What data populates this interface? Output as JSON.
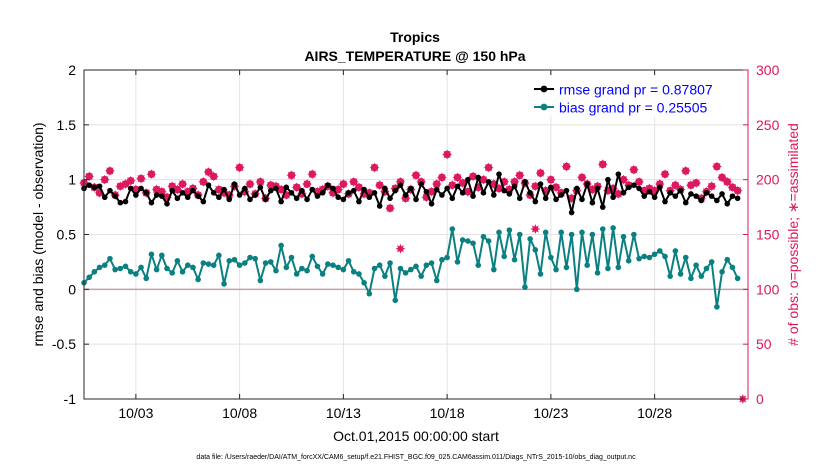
{
  "chart_data": {
    "type": "line",
    "title": "Tropics",
    "subtitle": "AIRS_TEMPERATURE @ 150 hPa",
    "xlabel": "Oct.01,2015 00:00:00 start",
    "ylabel_left": "rmse and bias (model - observation)",
    "ylabel_right": "# of obs: o=possible; ∗=assimilated",
    "footer": "data file: /Users/raeder/DAI/ATM_forcXX/CAM6_setup/f.e21.FHIST_BGC.f09_025.CAM6assim.011/Diags_NTrS_2015-10/obs_diag_output.nc",
    "x_range": [
      0.5,
      32.5
    ],
    "x_ticks": [
      3,
      8,
      13,
      18,
      23,
      28
    ],
    "x_tick_labels": [
      "10/03",
      "10/08",
      "10/13",
      "10/18",
      "10/23",
      "10/28"
    ],
    "y_left_range": [
      -1,
      2
    ],
    "y_left_ticks": [
      -1,
      -0.5,
      0,
      0.5,
      1,
      1.5,
      2
    ],
    "y_left_tick_labels": [
      "-1",
      "-0.5",
      "0",
      "0.5",
      "1",
      "1.5",
      "2"
    ],
    "y_right_range": [
      0,
      300
    ],
    "y_right_ticks": [
      0,
      50,
      100,
      150,
      200,
      250,
      300
    ],
    "y_right_tick_labels": [
      "0",
      "50",
      "100",
      "150",
      "200",
      "250",
      "300"
    ],
    "zero_line": 0,
    "legend_position": "top-right",
    "colors": {
      "rmse": "#000000",
      "bias": "#0b8080",
      "obs": "#dc1860",
      "legend_text": "#0000ff",
      "zero_line": "#c9a0a8",
      "grid": "#e2e2e2"
    },
    "series": [
      {
        "name": "rmse grand pr = 0.87807",
        "axis": "left",
        "x": [
          0.5,
          0.75,
          1.0,
          1.25,
          1.5,
          1.75,
          2.0,
          2.25,
          2.5,
          2.75,
          3.0,
          3.25,
          3.5,
          3.75,
          4.0,
          4.25,
          4.5,
          4.75,
          5.0,
          5.25,
          5.5,
          5.75,
          6.0,
          6.25,
          6.5,
          6.75,
          7.0,
          7.25,
          7.5,
          7.75,
          8.0,
          8.25,
          8.5,
          8.75,
          9.0,
          9.25,
          9.5,
          9.75,
          10.0,
          10.25,
          10.5,
          10.75,
          11.0,
          11.25,
          11.5,
          11.75,
          12.0,
          12.25,
          12.5,
          12.75,
          13.0,
          13.25,
          13.5,
          13.75,
          14.0,
          14.25,
          14.5,
          14.75,
          15.0,
          15.25,
          15.5,
          15.75,
          16.0,
          16.25,
          16.5,
          16.75,
          17.0,
          17.25,
          17.5,
          17.75,
          18.0,
          18.25,
          18.5,
          18.75,
          19.0,
          19.25,
          19.5,
          19.75,
          20.0,
          20.25,
          20.5,
          20.75,
          21.0,
          21.25,
          21.5,
          21.75,
          22.0,
          22.25,
          22.5,
          22.75,
          23.0,
          23.25,
          23.5,
          23.75,
          24.0,
          24.25,
          24.5,
          24.75,
          25.0,
          25.25,
          25.5,
          25.75,
          26.0,
          26.25,
          26.5,
          26.75,
          27.0,
          27.25,
          27.5,
          27.75,
          28.0,
          28.25,
          28.5,
          28.75,
          29.0,
          29.25,
          29.5,
          29.75,
          30.0,
          30.25,
          30.5,
          30.75,
          31.0,
          31.25,
          31.5,
          31.75,
          32.0
        ],
        "values": [
          0.92,
          0.95,
          0.93,
          0.94,
          0.84,
          0.9,
          0.85,
          0.79,
          0.8,
          0.92,
          0.86,
          0.92,
          0.88,
          0.79,
          0.86,
          0.85,
          0.78,
          0.9,
          0.83,
          0.88,
          0.84,
          0.9,
          0.85,
          0.8,
          0.95,
          0.88,
          0.84,
          0.91,
          0.82,
          0.96,
          0.86,
          0.92,
          0.82,
          0.86,
          0.93,
          0.82,
          0.9,
          0.92,
          0.8,
          0.93,
          0.88,
          0.83,
          0.9,
          0.82,
          0.91,
          0.85,
          0.88,
          0.95,
          0.92,
          0.84,
          0.82,
          0.88,
          0.9,
          0.8,
          0.91,
          0.84,
          0.88,
          0.76,
          0.92,
          0.83,
          0.9,
          0.95,
          0.86,
          0.92,
          0.82,
          0.96,
          0.89,
          0.78,
          0.91,
          0.86,
          0.92,
          0.83,
          0.94,
          0.88,
          1.0,
          0.85,
          1.02,
          0.88,
          0.98,
          0.86,
          1.05,
          0.9,
          0.87,
          0.94,
          0.83,
          0.98,
          0.88,
          0.8,
          0.96,
          0.83,
          0.93,
          0.82,
          0.86,
          0.9,
          0.7,
          0.92,
          0.82,
          0.96,
          0.79,
          0.92,
          0.75,
          1.0,
          0.84,
          1.05,
          0.88,
          0.93,
          0.95,
          0.92,
          0.85,
          0.89,
          0.84,
          0.93,
          0.8,
          0.88,
          0.85,
          0.9,
          0.79,
          0.87,
          0.85,
          0.81,
          0.88,
          0.85,
          0.81,
          0.87,
          0.78,
          0.85,
          0.83
        ]
      },
      {
        "name": "bias grand pr = 0.25505",
        "axis": "left",
        "x": [
          0.5,
          0.75,
          1.0,
          1.25,
          1.5,
          1.75,
          2.0,
          2.25,
          2.5,
          2.75,
          3.0,
          3.25,
          3.5,
          3.75,
          4.0,
          4.25,
          4.5,
          4.75,
          5.0,
          5.25,
          5.5,
          5.75,
          6.0,
          6.25,
          6.5,
          6.75,
          7.0,
          7.25,
          7.5,
          7.75,
          8.0,
          8.25,
          8.5,
          8.75,
          9.0,
          9.25,
          9.5,
          9.75,
          10.0,
          10.25,
          10.5,
          10.75,
          11.0,
          11.25,
          11.5,
          11.75,
          12.0,
          12.25,
          12.5,
          12.75,
          13.0,
          13.25,
          13.5,
          13.75,
          14.0,
          14.25,
          14.5,
          14.75,
          15.0,
          15.25,
          15.5,
          15.75,
          16.0,
          16.25,
          16.5,
          16.75,
          17.0,
          17.25,
          17.5,
          17.75,
          18.0,
          18.25,
          18.5,
          18.75,
          19.0,
          19.25,
          19.5,
          19.75,
          20.0,
          20.25,
          20.5,
          20.75,
          21.0,
          21.25,
          21.5,
          21.75,
          22.0,
          22.25,
          22.5,
          22.75,
          23.0,
          23.25,
          23.5,
          23.75,
          24.0,
          24.25,
          24.5,
          24.75,
          25.0,
          25.25,
          25.5,
          25.75,
          26.0,
          26.25,
          26.5,
          26.75,
          27.0,
          27.25,
          27.5,
          27.75,
          28.0,
          28.25,
          28.5,
          28.75,
          29.0,
          29.25,
          29.5,
          29.75,
          30.0,
          30.25,
          30.5,
          30.75,
          31.0,
          31.25,
          31.5,
          31.75,
          32.0
        ],
        "values": [
          0.06,
          0.11,
          0.16,
          0.2,
          0.22,
          0.28,
          0.18,
          0.19,
          0.21,
          0.16,
          0.14,
          0.2,
          0.1,
          0.32,
          0.18,
          0.31,
          0.19,
          0.15,
          0.26,
          0.16,
          0.22,
          0.2,
          0.09,
          0.24,
          0.23,
          0.22,
          0.31,
          0.05,
          0.26,
          0.27,
          0.22,
          0.24,
          0.29,
          0.28,
          0.08,
          0.24,
          0.25,
          0.17,
          0.4,
          0.2,
          0.29,
          0.14,
          0.19,
          0.17,
          0.3,
          0.21,
          0.14,
          0.23,
          0.22,
          0.2,
          0.18,
          0.26,
          0.16,
          0.14,
          0.06,
          -0.04,
          0.19,
          0.22,
          0.12,
          0.24,
          -0.1,
          0.19,
          0.15,
          0.18,
          0.21,
          0.12,
          0.22,
          0.24,
          0.08,
          0.27,
          0.29,
          0.55,
          0.25,
          0.45,
          0.44,
          0.42,
          0.22,
          0.48,
          0.44,
          0.18,
          0.52,
          0.3,
          0.54,
          0.27,
          0.5,
          0.02,
          0.46,
          0.36,
          0.14,
          0.52,
          0.29,
          0.18,
          0.52,
          0.2,
          0.5,
          0.0,
          0.52,
          0.22,
          0.5,
          0.15,
          0.55,
          0.19,
          0.56,
          0.2,
          0.48,
          0.26,
          0.5,
          0.28,
          0.3,
          0.29,
          0.32,
          0.35,
          0.3,
          0.12,
          0.35,
          0.14,
          0.29,
          0.1,
          0.22,
          0.12,
          0.19,
          0.25,
          -0.16,
          0.16,
          0.27,
          0.2,
          0.1
        ]
      },
      {
        "name": "obs possible",
        "axis": "right",
        "x": [
          0.5,
          0.75,
          1.0,
          1.25,
          1.5,
          1.75,
          2.0,
          2.25,
          2.5,
          2.75,
          3.0,
          3.25,
          3.5,
          3.75,
          4.0,
          4.25,
          4.5,
          4.75,
          5.0,
          5.25,
          5.5,
          5.75,
          6.0,
          6.25,
          6.5,
          6.75,
          7.0,
          7.25,
          7.5,
          7.75,
          8.0,
          8.25,
          8.5,
          8.75,
          9.0,
          9.25,
          9.5,
          9.75,
          10.0,
          10.25,
          10.5,
          10.75,
          11.0,
          11.25,
          11.5,
          11.75,
          12.0,
          12.25,
          12.5,
          12.75,
          13.0,
          13.25,
          13.5,
          13.75,
          14.0,
          14.25,
          14.5,
          14.75,
          15.0,
          15.25,
          15.5,
          15.75,
          16.0,
          16.25,
          16.5,
          16.75,
          17.0,
          17.25,
          17.5,
          17.75,
          18.0,
          18.25,
          18.5,
          18.75,
          19.0,
          19.25,
          19.5,
          19.75,
          20.0,
          20.25,
          20.5,
          20.75,
          21.0,
          21.25,
          21.5,
          21.75,
          22.0,
          22.25,
          22.5,
          22.75,
          23.0,
          23.25,
          23.5,
          23.75,
          24.0,
          24.25,
          24.5,
          24.75,
          25.0,
          25.25,
          25.5,
          25.75,
          26.0,
          26.25,
          26.5,
          26.75,
          27.0,
          27.25,
          27.5,
          27.75,
          28.0,
          28.25,
          28.5,
          28.75,
          29.0,
          29.25,
          29.5,
          29.75,
          30.0,
          30.25,
          30.5,
          30.75,
          31.0,
          31.25,
          31.5,
          31.75,
          32.0
        ],
        "values": [
          197,
          203,
          193,
          188,
          200,
          208,
          186,
          194,
          196,
          199,
          191,
          201,
          188,
          205,
          191,
          189,
          184,
          194,
          191,
          196,
          189,
          192,
          186,
          198,
          207,
          203,
          191,
          188,
          186,
          194,
          211,
          189,
          196,
          187,
          198,
          183,
          195,
          194,
          191,
          186,
          204,
          193,
          187,
          196,
          205,
          189,
          191,
          194,
          188,
          191,
          196,
          187,
          198,
          193,
          187,
          188,
          211,
          195,
          189,
          174,
          192,
          198,
          183,
          191,
          204,
          198,
          184,
          189,
          196,
          202,
          223,
          195,
          202,
          197,
          189,
          203,
          193,
          200,
          211,
          196,
          192,
          198,
          191,
          198,
          204,
          197,
          186,
          194,
          206,
          190,
          200,
          193,
          188,
          212,
          183,
          190,
          202,
          196,
          191,
          194,
          214,
          190,
          192,
          187,
          200,
          195,
          209,
          198,
          190,
          192,
          190,
          196,
          205,
          190,
          195,
          191,
          208,
          195,
          197,
          183,
          189,
          194,
          212,
          202,
          198,
          193,
          190
        ]
      },
      {
        "name": "obs assimilated",
        "axis": "right",
        "x": [
          0.5,
          0.75,
          1.0,
          1.25,
          1.5,
          1.75,
          2.0,
          2.25,
          2.5,
          2.75,
          3.0,
          3.25,
          3.5,
          3.75,
          4.0,
          4.25,
          4.5,
          4.75,
          5.0,
          5.25,
          5.5,
          5.75,
          6.0,
          6.25,
          6.5,
          6.75,
          7.0,
          7.25,
          7.5,
          7.75,
          8.0,
          8.25,
          8.5,
          8.75,
          9.0,
          9.25,
          9.5,
          9.75,
          10.0,
          10.25,
          10.5,
          10.75,
          11.0,
          11.25,
          11.5,
          11.75,
          12.0,
          12.25,
          12.5,
          12.75,
          13.0,
          13.25,
          13.5,
          13.75,
          14.0,
          14.25,
          14.5,
          14.75,
          15.0,
          15.25,
          15.5,
          15.75,
          16.0,
          16.25,
          16.5,
          16.75,
          17.0,
          17.25,
          17.5,
          17.75,
          18.0,
          18.25,
          18.5,
          18.75,
          19.0,
          19.25,
          19.5,
          19.75,
          20.0,
          20.25,
          20.5,
          20.75,
          21.0,
          21.25,
          21.5,
          21.75,
          22.0,
          22.25,
          22.5,
          22.75,
          23.0,
          23.25,
          23.5,
          23.75,
          24.0,
          24.25,
          24.5,
          24.75,
          25.0,
          25.25,
          25.5,
          25.75,
          26.0,
          26.25,
          26.5,
          26.75,
          27.0,
          27.25,
          27.5,
          27.75,
          28.0,
          28.25,
          28.5,
          28.75,
          29.0,
          29.25,
          29.5,
          29.75,
          30.0,
          30.25,
          30.5,
          30.75,
          31.0,
          31.25,
          31.5,
          31.75,
          32.0
        ],
        "values": [
          197,
          203,
          193,
          188,
          200,
          208,
          186,
          194,
          196,
          199,
          191,
          201,
          188,
          205,
          191,
          189,
          184,
          194,
          191,
          196,
          189,
          192,
          186,
          198,
          207,
          203,
          191,
          188,
          186,
          194,
          211,
          189,
          196,
          187,
          198,
          183,
          195,
          194,
          191,
          186,
          204,
          193,
          187,
          196,
          205,
          189,
          191,
          194,
          188,
          191,
          196,
          187,
          198,
          193,
          187,
          188,
          211,
          195,
          189,
          174,
          192,
          198,
          183,
          191,
          204,
          198,
          184,
          189,
          196,
          202,
          223,
          195,
          202,
          197,
          189,
          203,
          193,
          200,
          211,
          196,
          192,
          198,
          191,
          198,
          204,
          197,
          186,
          194,
          206,
          190,
          200,
          193,
          188,
          212,
          183,
          190,
          202,
          196,
          191,
          194,
          214,
          190,
          192,
          187,
          200,
          195,
          209,
          198,
          190,
          192,
          190,
          196,
          205,
          190,
          195,
          191,
          208,
          195,
          197,
          183,
          189,
          194,
          212,
          202,
          198,
          193,
          190
        ]
      }
    ],
    "extra_assimilated_points": [
      {
        "x": 15.75,
        "y": 137
      },
      {
        "x": 22.25,
        "y": 155
      },
      {
        "x": 32.25,
        "y": 0
      }
    ]
  }
}
